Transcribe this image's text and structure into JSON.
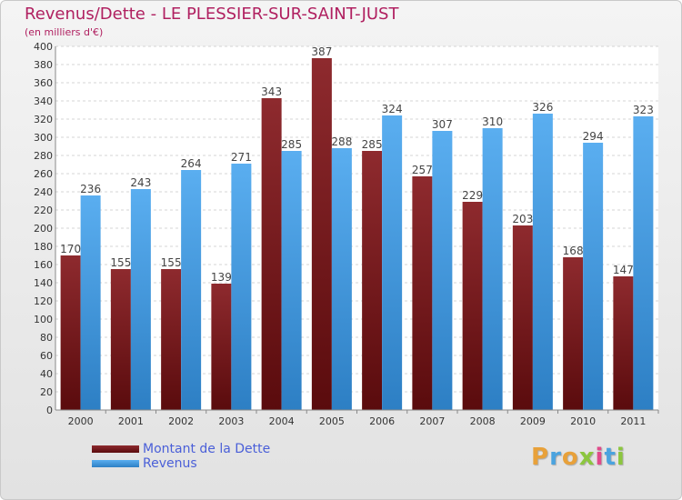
{
  "header": {
    "title": "Revenus/Dette - LE PLESSIER-SUR-SAINT-JUST",
    "subtitle": "(en milliers d'€)"
  },
  "chart_data": {
    "type": "bar",
    "categories": [
      "2000",
      "2001",
      "2002",
      "2003",
      "2004",
      "2005",
      "2006",
      "2007",
      "2008",
      "2009",
      "2010",
      "2011"
    ],
    "series": [
      {
        "name": "Montant de la Dette",
        "color": "#8b1a1a",
        "values": [
          170,
          155,
          155,
          139,
          343,
          387,
          285,
          257,
          229,
          203,
          168,
          147
        ]
      },
      {
        "name": "Revenus",
        "color": "#3b9ae1",
        "values": [
          236,
          243,
          264,
          271,
          285,
          288,
          324,
          307,
          310,
          326,
          294,
          323
        ]
      }
    ],
    "ylim": [
      0,
      400
    ],
    "ytick_step": 20,
    "grid": true,
    "legend": "bottom-left"
  },
  "logo": {
    "letters": [
      "P",
      "r",
      "o",
      "x",
      "i",
      "t",
      "i"
    ],
    "colors": [
      "#e8a13a",
      "#4aa3df",
      "#e8a13a",
      "#8cc63f",
      "#e04a8a",
      "#4aa3df",
      "#8cc63f"
    ]
  }
}
